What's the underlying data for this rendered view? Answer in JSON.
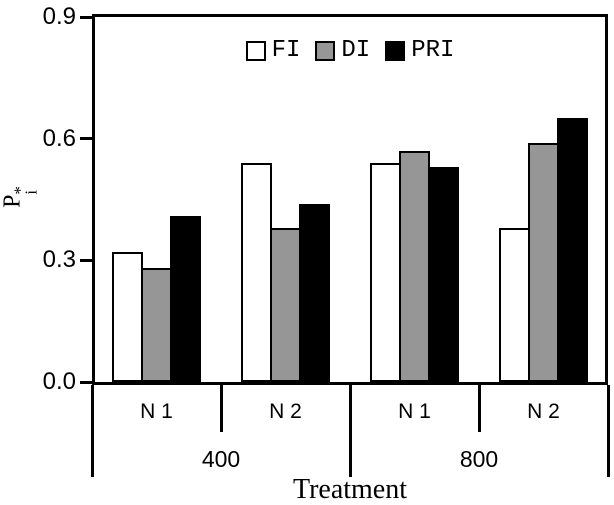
{
  "chart_data": {
    "type": "bar",
    "title": "",
    "xlabel": "Treatment",
    "ylabel": "Pi*",
    "ylabel_base": "P",
    "ylabel_sup": "*",
    "ylabel_sub": "i",
    "ylim": [
      0,
      0.9
    ],
    "yticks": [
      0,
      0.3,
      0.6,
      0.9
    ],
    "ytick_labels": [
      "0.0",
      "0.3",
      "0.6",
      "0.9"
    ],
    "categories": [
      "N 1",
      "N 2",
      "N 1",
      "N 2"
    ],
    "groups": [
      {
        "label": "400",
        "categories": [
          "N 1",
          "N 2"
        ]
      },
      {
        "label": "800",
        "categories": [
          "N 1",
          "N 2"
        ]
      }
    ],
    "series": [
      {
        "name": "FI",
        "color": "#ffffff",
        "values": [
          0.32,
          0.54,
          0.54,
          0.38
        ]
      },
      {
        "name": "DI",
        "color": "#969696",
        "values": [
          0.28,
          0.38,
          0.57,
          0.59
        ]
      },
      {
        "name": "PRI",
        "color": "#000000",
        "values": [
          0.41,
          0.44,
          0.53,
          0.65
        ]
      }
    ],
    "legend_position": "top-center",
    "grid": false,
    "axis_color": "#000000",
    "background": "#ffffff"
  }
}
